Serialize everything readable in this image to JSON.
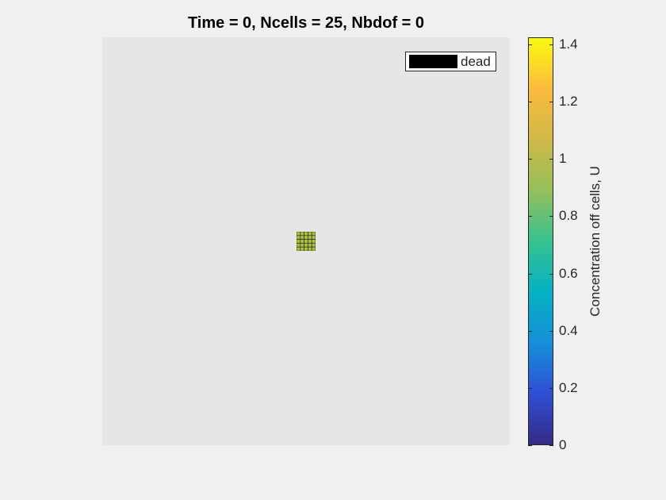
{
  "figure": {
    "title": "Time = 0, Ncells = 25, Nbdof = 0"
  },
  "legend": {
    "label": "dead",
    "swatch_color": "#000000"
  },
  "colorbar": {
    "label": "Concentration off cells, U",
    "colormap": "parula",
    "range": [
      0,
      1.4247
    ],
    "ticks": [
      "0",
      "0.2",
      "0.4",
      "0.6",
      "0.8",
      "1",
      "1.2",
      "1.4"
    ],
    "tick_values": [
      0,
      0.2,
      0.4,
      0.6,
      0.8,
      1.0,
      1.2,
      1.4
    ],
    "gradient_stops": [
      "#352a87",
      "#2f4fd6",
      "#168fd8",
      "#06b1c3",
      "#37c18f",
      "#94bf5c",
      "#d0b848",
      "#fbbb3d",
      "#f9fb0e"
    ]
  },
  "chart_data": {
    "type": "heatmap",
    "title": "Time = 0, Ncells = 25, Nbdof = 0",
    "grid_rows": 5,
    "grid_cols": 5,
    "cell_value": 1.0,
    "cell_color": "#aebe3f",
    "background_color": "#e6e6e6",
    "legend": [
      "dead"
    ],
    "colorbar_label": "Concentration off cells, U",
    "clim": [
      0,
      1.4247
    ]
  }
}
